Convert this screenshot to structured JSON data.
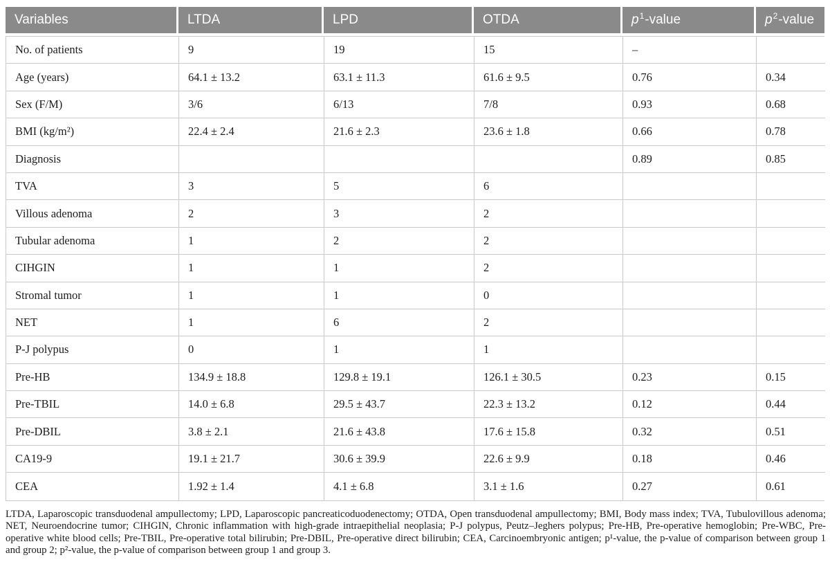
{
  "colors": {
    "header_bg": "#8a8a8a",
    "header_text": "#ffffff",
    "body_text": "#1d1d1d",
    "border": "#c9c9c9",
    "page_bg": "#ffffff"
  },
  "table": {
    "columns": [
      "Variables",
      "LTDA",
      "LPD",
      "OTDA"
    ],
    "p1_header": {
      "p": "p",
      "sup": "1",
      "suffix": "-value"
    },
    "p2_header": {
      "p": "p",
      "sup": "2",
      "suffix": "-value"
    },
    "rows": [
      [
        "No. of patients",
        "9",
        "19",
        "15",
        "–",
        ""
      ],
      [
        "Age (years)",
        "64.1 ± 13.2",
        "63.1 ± 11.3",
        "61.6 ± 9.5",
        "0.76",
        "0.34"
      ],
      [
        "Sex (F/M)",
        "3/6",
        "6/13",
        "7/8",
        "0.93",
        "0.68"
      ],
      [
        "BMI (kg/m²)",
        "22.4 ± 2.4",
        "21.6 ± 2.3",
        "23.6 ± 1.8",
        "0.66",
        "0.78"
      ],
      [
        "Diagnosis",
        "",
        "",
        "",
        "0.89",
        "0.85"
      ],
      [
        "TVA",
        "3",
        "5",
        "6",
        "",
        ""
      ],
      [
        "Villous adenoma",
        "2",
        "3",
        "2",
        "",
        ""
      ],
      [
        "Tubular adenoma",
        "1",
        "2",
        "2",
        "",
        ""
      ],
      [
        "CIHGIN",
        "1",
        "1",
        "2",
        "",
        ""
      ],
      [
        "Stromal tumor",
        "1",
        "1",
        "0",
        "",
        ""
      ],
      [
        "NET",
        "1",
        "6",
        "2",
        "",
        ""
      ],
      [
        "P-J polypus",
        "0",
        "1",
        "1",
        "",
        ""
      ],
      [
        "Pre-HB",
        "134.9 ± 18.8",
        "129.8 ± 19.1",
        "126.1 ± 30.5",
        "0.23",
        "0.15"
      ],
      [
        "Pre-TBIL",
        "14.0 ± 6.8",
        "29.5 ± 43.7",
        "22.3 ± 13.2",
        "0.12",
        "0.44"
      ],
      [
        "Pre-DBIL",
        "3.8 ± 2.1",
        "21.6 ± 43.8",
        "17.6 ± 15.8",
        "0.32",
        "0.51"
      ],
      [
        "CA19-9",
        "19.1 ± 21.7",
        "30.6 ± 39.9",
        "22.6 ± 9.9",
        "0.18",
        "0.46"
      ],
      [
        "CEA",
        "1.92 ± 1.4",
        "4.1 ± 6.8",
        "3.1 ± 1.6",
        "0.27",
        "0.61"
      ]
    ]
  },
  "footnote": "LTDA, Laparoscopic transduodenal ampullectomy; LPD, Laparoscopic pancreaticoduodenectomy; OTDA, Open transduodenal ampullectomy; BMI, Body mass index; TVA, Tubulovillous adenoma; NET, Neuroendocrine tumor; CIHGIN, Chronic inflammation with high-grade intraepithelial neoplasia; P-J polypus, Peutz–Jeghers polypus; Pre-HB, Pre-operative hemoglobin; Pre-WBC, Pre-operative white blood cells; Pre-TBIL, Pre-operative total bilirubin; Pre-DBIL, Pre-operative direct bilirubin; CEA, Carcinoembryonic antigen; p¹-value, the p-value of comparison between group 1 and group 2; p²-value, the p-value of comparison between group 1 and group 3."
}
